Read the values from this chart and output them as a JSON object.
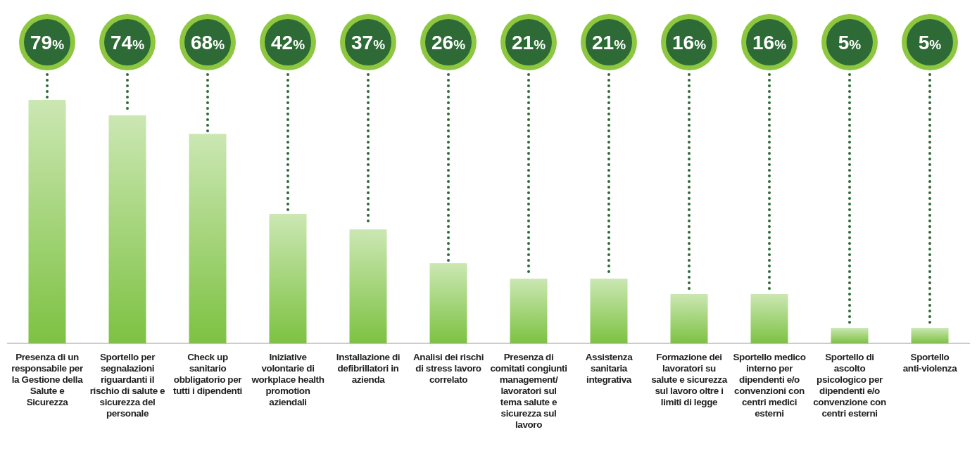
{
  "chart_data": {
    "type": "bar",
    "categories": [
      "Presenza di un responsabile per la Gestione della Salute e Sicurezza",
      "Sportello per segnalazioni riguardanti il rischio di salute e sicurezza del personale",
      "Check up sanitario obbligatorio per tutti i dipendenti",
      "Iniziative volontarie di workplace health promotion aziendali",
      "Installazione di defibrillatori in azienda",
      "Analisi dei rischi di stress lavoro correlato",
      "Presenza di comitati congiunti management/ lavoratori sul tema salute e sicurezza sul lavoro",
      "Assistenza sanitaria integrativa",
      "Formazione dei lavoratori su salute e sicurezza sul lavoro oltre i limiti di legge",
      "Sportello medico interno per dipendenti e/o convenzioni con centri medici esterni",
      "Sportello di ascolto psicologico per dipendenti e/o convenzione con centri esterni",
      "Sportello anti-violenza"
    ],
    "values": [
      79,
      74,
      68,
      42,
      37,
      26,
      21,
      21,
      16,
      16,
      5,
      5
    ],
    "value_labels": [
      "79%",
      "74%",
      "68%",
      "42%",
      "37%",
      "26%",
      "21%",
      "21%",
      "16%",
      "16%",
      "5%",
      "5%"
    ],
    "color": "#7dc242"
  }
}
